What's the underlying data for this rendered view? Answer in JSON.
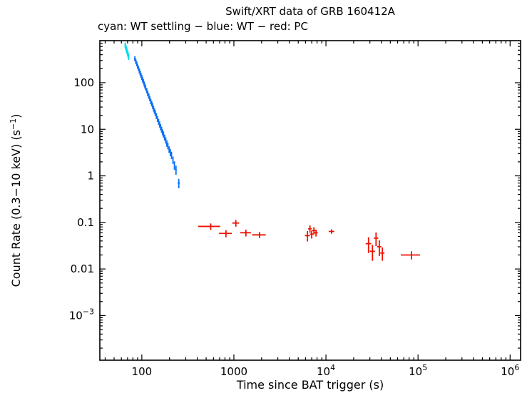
{
  "header": {
    "title": "Swift/XRT data of GRB 160412A",
    "subtitle": "cyan: WT settling − blue: WT − red: PC"
  },
  "axes": {
    "xlabel": "Time since BAT trigger (s)",
    "ylabel_pre": "Count Rate (0.3−10 keV) (s",
    "ylabel_sup": "−1",
    "ylabel_post": ")"
  },
  "chart_data": {
    "type": "scatter",
    "title": "Swift/XRT data of GRB 160412A",
    "subtitle": "cyan: WT settling − blue: WT − red: PC",
    "xlabel": "Time since BAT trigger (s)",
    "ylabel": "Count Rate (0.3−10 keV) (s^−1)",
    "xscale": "log",
    "yscale": "log",
    "xlim": [
      35,
      1300000
    ],
    "ylim": [
      0.00011,
      800
    ],
    "grid": false,
    "legend_position": "none",
    "x_ticks": [
      {
        "v": 100,
        "label": "100"
      },
      {
        "v": 1000,
        "label": "1000"
      },
      {
        "v": 10000,
        "label": "10^4"
      },
      {
        "v": 100000,
        "label": "10^5"
      },
      {
        "v": 1000000,
        "label": "10^6"
      }
    ],
    "y_ticks": [
      {
        "v": 100,
        "label": "100"
      },
      {
        "v": 10,
        "label": "10"
      },
      {
        "v": 1,
        "label": "1"
      },
      {
        "v": 0.1,
        "label": "0.1"
      },
      {
        "v": 0.01,
        "label": "0.01"
      },
      {
        "v": 0.001,
        "label": "10^−3"
      }
    ],
    "point_format": "[time_s, rate, time_err, rate_err]",
    "series": [
      {
        "name": "WT settling",
        "color": "#00dcee",
        "points": [
          [
            66,
            640,
            1,
            90
          ],
          [
            67,
            580,
            1,
            80
          ],
          [
            68,
            525,
            1,
            75
          ],
          [
            69,
            478,
            1,
            68
          ],
          [
            70,
            434,
            1,
            62
          ],
          [
            71,
            395,
            1,
            57
          ],
          [
            72,
            360,
            1,
            52
          ]
        ]
      },
      {
        "name": "WT",
        "color": "#0b6ff7",
        "points": [
          [
            84,
            330,
            1.5,
            40
          ],
          [
            86,
            290,
            1.5,
            36
          ],
          [
            88,
            257,
            1.5,
            32
          ],
          [
            90,
            228,
            1.5,
            28
          ],
          [
            92,
            203,
            1.5,
            25
          ],
          [
            94,
            181,
            1.5,
            23
          ],
          [
            96,
            162,
            1.5,
            20
          ],
          [
            98,
            145,
            1.5,
            18
          ],
          [
            100,
            130,
            1.5,
            16
          ],
          [
            102,
            117,
            1.5,
            15
          ],
          [
            104,
            106,
            1.5,
            13
          ],
          [
            106,
            95,
            1.5,
            12
          ],
          [
            108,
            86,
            1.5,
            11
          ],
          [
            110,
            78,
            1.5,
            10
          ],
          [
            113,
            68,
            1.5,
            9
          ],
          [
            116,
            59,
            1.5,
            8
          ],
          [
            119,
            52,
            1.5,
            7
          ],
          [
            122,
            46,
            1.5,
            6
          ],
          [
            125,
            40,
            1.5,
            5.5
          ],
          [
            128,
            36,
            1.5,
            5
          ],
          [
            131,
            32,
            1.5,
            4.5
          ],
          [
            134,
            28,
            1.5,
            4
          ],
          [
            137,
            25,
            1.5,
            3.5
          ],
          [
            140,
            22.5,
            1.5,
            3.2
          ],
          [
            144,
            19.4,
            1.8,
            2.8
          ],
          [
            148,
            16.8,
            1.8,
            2.4
          ],
          [
            152,
            14.6,
            1.8,
            2.1
          ],
          [
            156,
            12.8,
            1.8,
            1.9
          ],
          [
            160,
            11.2,
            1.8,
            1.7
          ],
          [
            164,
            9.9,
            1.8,
            1.5
          ],
          [
            168,
            8.7,
            1.8,
            1.3
          ],
          [
            172,
            7.8,
            1.8,
            1.2
          ],
          [
            177,
            6.7,
            2,
            1.0
          ],
          [
            182,
            5.8,
            2,
            0.9
          ],
          [
            187,
            5.0,
            2,
            0.8
          ],
          [
            192,
            4.4,
            2,
            0.7
          ],
          [
            198,
            3.7,
            2.5,
            0.6
          ],
          [
            204,
            3.2,
            2.5,
            0.55
          ],
          [
            210,
            2.8,
            2.5,
            0.5
          ],
          [
            218,
            2.2,
            3,
            0.4
          ],
          [
            226,
            1.7,
            3,
            0.35
          ],
          [
            235,
            1.35,
            4,
            0.3
          ],
          [
            252,
            0.7,
            7,
            0.16
          ]
        ]
      },
      {
        "name": "PC",
        "color": "#ee1100",
        "points": [
          [
            560,
            0.082,
            150,
            0.013
          ],
          [
            820,
            0.058,
            130,
            0.01
          ],
          [
            1050,
            0.097,
            90,
            0.016
          ],
          [
            1350,
            0.06,
            180,
            0.01
          ],
          [
            1900,
            0.054,
            320,
            0.008
          ],
          [
            6300,
            0.052,
            400,
            0.013
          ],
          [
            6700,
            0.073,
            300,
            0.013
          ],
          [
            7000,
            0.056,
            300,
            0.011
          ],
          [
            7400,
            0.067,
            300,
            0.012
          ],
          [
            7800,
            0.06,
            350,
            0.01
          ],
          [
            11500,
            0.064,
            800,
            0.007
          ],
          [
            29000,
            0.035,
            2000,
            0.013
          ],
          [
            32000,
            0.024,
            2000,
            0.009
          ],
          [
            35000,
            0.046,
            2000,
            0.015
          ],
          [
            38000,
            0.03,
            2000,
            0.011
          ],
          [
            41000,
            0.022,
            2200,
            0.007
          ],
          [
            85000,
            0.02,
            20000,
            0.004
          ]
        ]
      }
    ]
  }
}
